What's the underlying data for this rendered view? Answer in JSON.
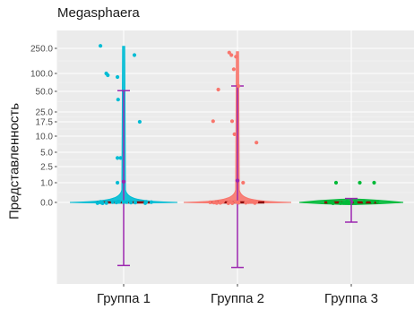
{
  "chart_data": {
    "type": "violin",
    "title": "Megasphaera",
    "xlabel": "",
    "ylabel": "Представленность",
    "y_scale": "pseudo-log",
    "y_ticks": [
      {
        "label": "250.0",
        "value": 250
      },
      {
        "label": "100.0",
        "value": 100
      },
      {
        "label": "50.0",
        "value": 50
      },
      {
        "label": "25.0",
        "value": 25
      },
      {
        "label": "17.5",
        "value": 17.5
      },
      {
        "label": "10.0",
        "value": 10
      },
      {
        "label": "5.0",
        "value": 5
      },
      {
        "label": "2.5",
        "value": 2.5
      },
      {
        "label": "1.0",
        "value": 1
      },
      {
        "label": "0.0",
        "value": 0
      }
    ],
    "y_min_shown": -0.35,
    "categories": [
      "Группа 1",
      "Группа 2",
      "Группа 3"
    ],
    "colors": [
      "#00bcd4",
      "#f8766d",
      "#00ba38"
    ],
    "summary_color": "#9c27b0",
    "median_color": "#8b0000",
    "groups": [
      {
        "category": "Группа 1",
        "mean": 1.1,
        "error_upper": 52,
        "error_lower": -0.32,
        "median": 0,
        "violin_top": 262,
        "points": [
          0.0,
          0.0,
          0.0,
          0.0,
          0.0,
          0.0,
          0.0,
          0.0,
          0.0,
          0.0,
          0.0,
          0.0,
          0.0,
          0.0,
          0.0,
          0.0,
          0.0,
          0.0,
          0.0,
          0.0,
          1.0,
          4.0,
          4.0,
          17.5,
          40,
          90,
          95,
          100,
          210,
          265
        ]
      },
      {
        "category": "Группа 2",
        "mean": 1.2,
        "error_upper": 65,
        "error_lower": -0.33,
        "median": 0,
        "violin_top": 230,
        "points": [
          0.0,
          0.0,
          0.0,
          0.0,
          0.0,
          0.0,
          0.0,
          0.0,
          0.0,
          0.0,
          0.0,
          0.0,
          0.0,
          0.0,
          0.0,
          0.0,
          0.0,
          0.0,
          0.0,
          0.0,
          1.0,
          8,
          11,
          18,
          18,
          55,
          65,
          125,
          200,
          210,
          225
        ]
      },
      {
        "category": "Группа 3",
        "mean": 0.03,
        "error_upper": 0.2,
        "error_lower": -0.1,
        "median": 0,
        "violin_top": 0.3,
        "points": [
          0.0,
          0.0,
          0.0,
          0.0,
          0.0,
          0.0,
          0.0,
          0.0,
          0.0,
          0.0,
          0.0,
          0.0,
          0.0,
          0.0,
          0.0,
          1.0,
          1.0,
          1.0
        ]
      }
    ],
    "grid": true,
    "legend": "none"
  }
}
